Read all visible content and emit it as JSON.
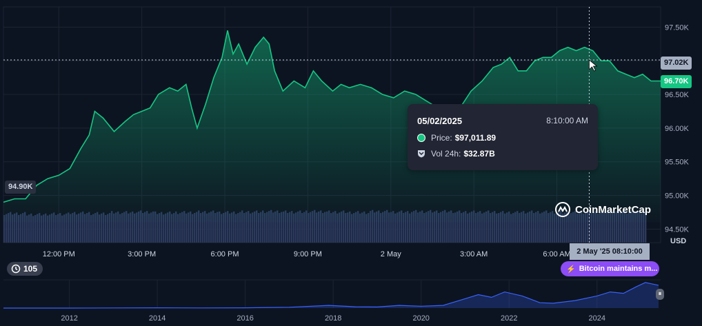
{
  "chart_data": {
    "type": "area",
    "currency_label": "USD",
    "y_ticks": [
      "97.50K",
      "97.00K",
      "96.50K",
      "96.00K",
      "95.50K",
      "95.00K",
      "94.50K"
    ],
    "y_tick_values": [
      97500,
      97000,
      96500,
      96000,
      95500,
      95000,
      94500
    ],
    "ylim": [
      94300,
      97800
    ],
    "x_ticks": [
      "12:00 PM",
      "3:00 PM",
      "6:00 PM",
      "9:00 PM",
      "2 May",
      "3:00 AM",
      "6:00 AM"
    ],
    "x_tick_hours": [
      12,
      15,
      18,
      21,
      24,
      27,
      30
    ],
    "xlim_hours": [
      10.0,
      33.75
    ],
    "price_series": {
      "hours": [
        10.0,
        10.4,
        10.8,
        11.2,
        11.6,
        12.0,
        12.4,
        12.8,
        13.1,
        13.3,
        13.6,
        14.0,
        14.4,
        14.7,
        15.0,
        15.3,
        15.6,
        16.0,
        16.3,
        16.6,
        16.8,
        17.0,
        17.3,
        17.6,
        17.9,
        18.1,
        18.3,
        18.5,
        18.8,
        19.1,
        19.4,
        19.6,
        19.8,
        20.1,
        20.5,
        20.9,
        21.2,
        21.5,
        21.9,
        22.2,
        22.5,
        22.9,
        23.3,
        23.7,
        24.1,
        24.5,
        24.9,
        25.3,
        25.7,
        26.1,
        26.5,
        26.9,
        27.3,
        27.7,
        28.0,
        28.3,
        28.6,
        28.9,
        29.2,
        29.5,
        29.8,
        30.1,
        30.4,
        30.7,
        31.0,
        31.3,
        31.6,
        31.9,
        32.2,
        32.5,
        32.8,
        33.1,
        33.4,
        33.75
      ],
      "prices": [
        94900,
        94950,
        94950,
        95150,
        95250,
        95300,
        95400,
        95700,
        95900,
        96250,
        96150,
        95950,
        96100,
        96200,
        96250,
        96300,
        96500,
        96600,
        96550,
        96650,
        96300,
        96000,
        96350,
        96750,
        97050,
        97450,
        97100,
        97250,
        96950,
        97200,
        97350,
        97250,
        96850,
        96550,
        96700,
        96600,
        96850,
        96700,
        96550,
        96650,
        96600,
        96650,
        96600,
        96500,
        96450,
        96550,
        96500,
        96400,
        96300,
        96150,
        96300,
        96550,
        96700,
        96900,
        96950,
        97050,
        96850,
        96850,
        97000,
        97050,
        97050,
        97150,
        97200,
        97150,
        97200,
        97150,
        97000,
        97000,
        96850,
        96800,
        96750,
        96800,
        96700,
        96700
      ]
    },
    "volume_series": {
      "note_values": "relative height of 24h volume",
      "levels": [
        0.55,
        0.53,
        0.54,
        0.56,
        0.55,
        0.57,
        0.58,
        0.56,
        0.57,
        0.58,
        0.57,
        0.58,
        0.59,
        0.58,
        0.59,
        0.58,
        0.57,
        0.59,
        0.58,
        0.59,
        0.59,
        0.58,
        0.58,
        0.57,
        0.58,
        0.58,
        0.57,
        0.58,
        0.59,
        0.58
      ]
    },
    "hover": {
      "hour": 31.17,
      "date": "05/02/2025",
      "time": "8:10:00 AM",
      "price_label": "Price:",
      "price_value": "$97,011.89",
      "volume_label": "Vol 24h:",
      "volume_value": "$32.87B",
      "axis_price_badge": "97.02K",
      "axis_time_badge": "2 May '25 08:10:00",
      "price_value_num": 97011.89
    },
    "current_price_badge": "96.70K",
    "current_price_num": 96700,
    "left_low_badge": "94.90K",
    "left_low_num": 94900,
    "overview": {
      "x_ticks": [
        "2012",
        "2014",
        "2016",
        "2018",
        "2020",
        "2022",
        "2024"
      ],
      "x_tick_years": [
        2012,
        2014,
        2016,
        2018,
        2020,
        2022,
        2024
      ],
      "xlim_years": [
        2010.5,
        2025.4
      ],
      "years": [
        2010.5,
        2012,
        2013,
        2014,
        2015,
        2016,
        2017,
        2017.9,
        2018.5,
        2019,
        2019.5,
        2020,
        2020.5,
        2021,
        2021.3,
        2021.6,
        2021.9,
        2022.3,
        2022.7,
        2023,
        2023.5,
        2024,
        2024.3,
        2024.6,
        2024.9,
        2025.1,
        2025.4
      ],
      "levels": [
        0,
        0,
        0.005,
        0.01,
        0.005,
        0.01,
        0.03,
        0.1,
        0.05,
        0.04,
        0.1,
        0.07,
        0.1,
        0.35,
        0.5,
        0.4,
        0.6,
        0.45,
        0.2,
        0.18,
        0.28,
        0.45,
        0.6,
        0.55,
        0.8,
        0.95,
        0.85
      ]
    }
  },
  "ui": {
    "event_count": "105",
    "news_text": "Bitcoin maintains m...",
    "brand_name": "CoinMarketCap",
    "colors": {
      "accent": "#16c784",
      "news": "#8c4cf6",
      "background": "#0d1421"
    }
  }
}
